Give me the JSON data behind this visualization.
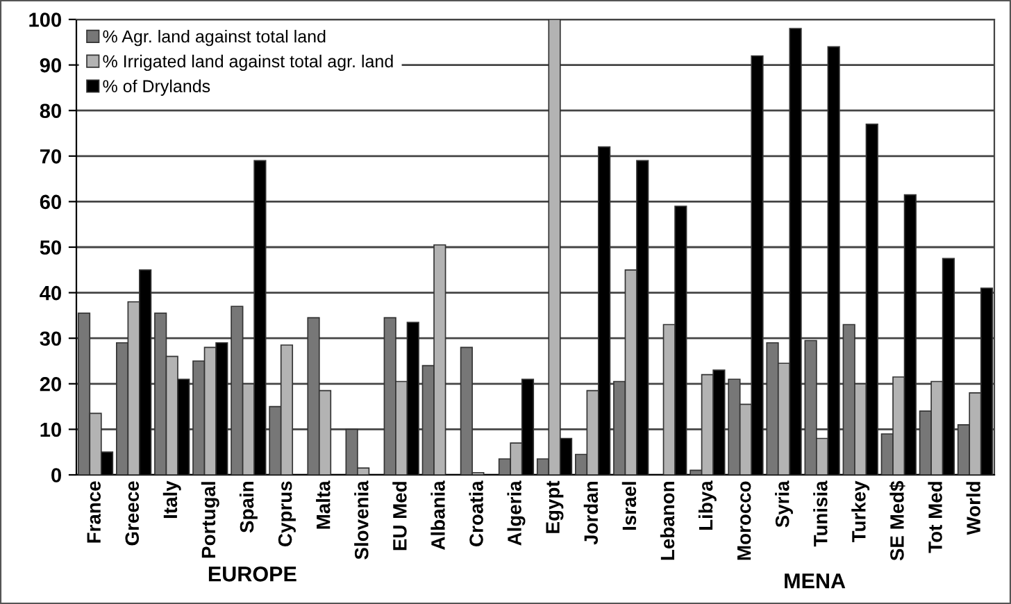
{
  "chart_data": {
    "type": "bar",
    "categories": [
      "France",
      "Greece",
      "Italy",
      "Portugal",
      "Spain",
      "Cyprus",
      "Malta",
      "Slovenia",
      "EU Med",
      "Albania",
      "Croatia",
      "Algeria",
      "Egypt",
      "Jordan",
      "Israel",
      "Lebanon",
      "Libya",
      "Morocco",
      "Syria",
      "Tunisia",
      "Turkey",
      "SE Med$",
      "Tot Med",
      "World"
    ],
    "series": [
      {
        "name": "% Agr. land against total land",
        "color": "#777777",
        "values": [
          35.5,
          29,
          35.5,
          25,
          37,
          15,
          34.5,
          10,
          34.5,
          24,
          28,
          3.5,
          3.5,
          4.5,
          20.5,
          0,
          1,
          21,
          29,
          29.5,
          33,
          9,
          14,
          11
        ]
      },
      {
        "name": "% Irrigated land against total agr. land",
        "color": "#b3b3b3",
        "values": [
          13.5,
          38,
          26,
          28,
          20,
          28.5,
          18.5,
          1.5,
          20.5,
          50.5,
          0.5,
          7,
          100,
          18.5,
          45,
          33,
          22,
          15.5,
          24.5,
          8,
          20,
          21.5,
          20.5,
          18
        ]
      },
      {
        "name": "% of Drylands",
        "color": "#000000",
        "values": [
          5,
          45,
          21,
          29,
          69,
          0,
          0,
          0,
          33.5,
          0,
          0,
          21,
          8,
          72,
          69,
          59,
          23,
          92,
          98,
          94,
          77,
          61.5,
          47.5,
          41
        ]
      }
    ],
    "ylim": [
      0,
      100
    ],
    "yticks": [
      0,
      10,
      20,
      30,
      40,
      50,
      60,
      70,
      80,
      90,
      100
    ],
    "grid": "y",
    "legend": "top left",
    "annotations": [
      "EUROPE",
      "MENA"
    ]
  }
}
